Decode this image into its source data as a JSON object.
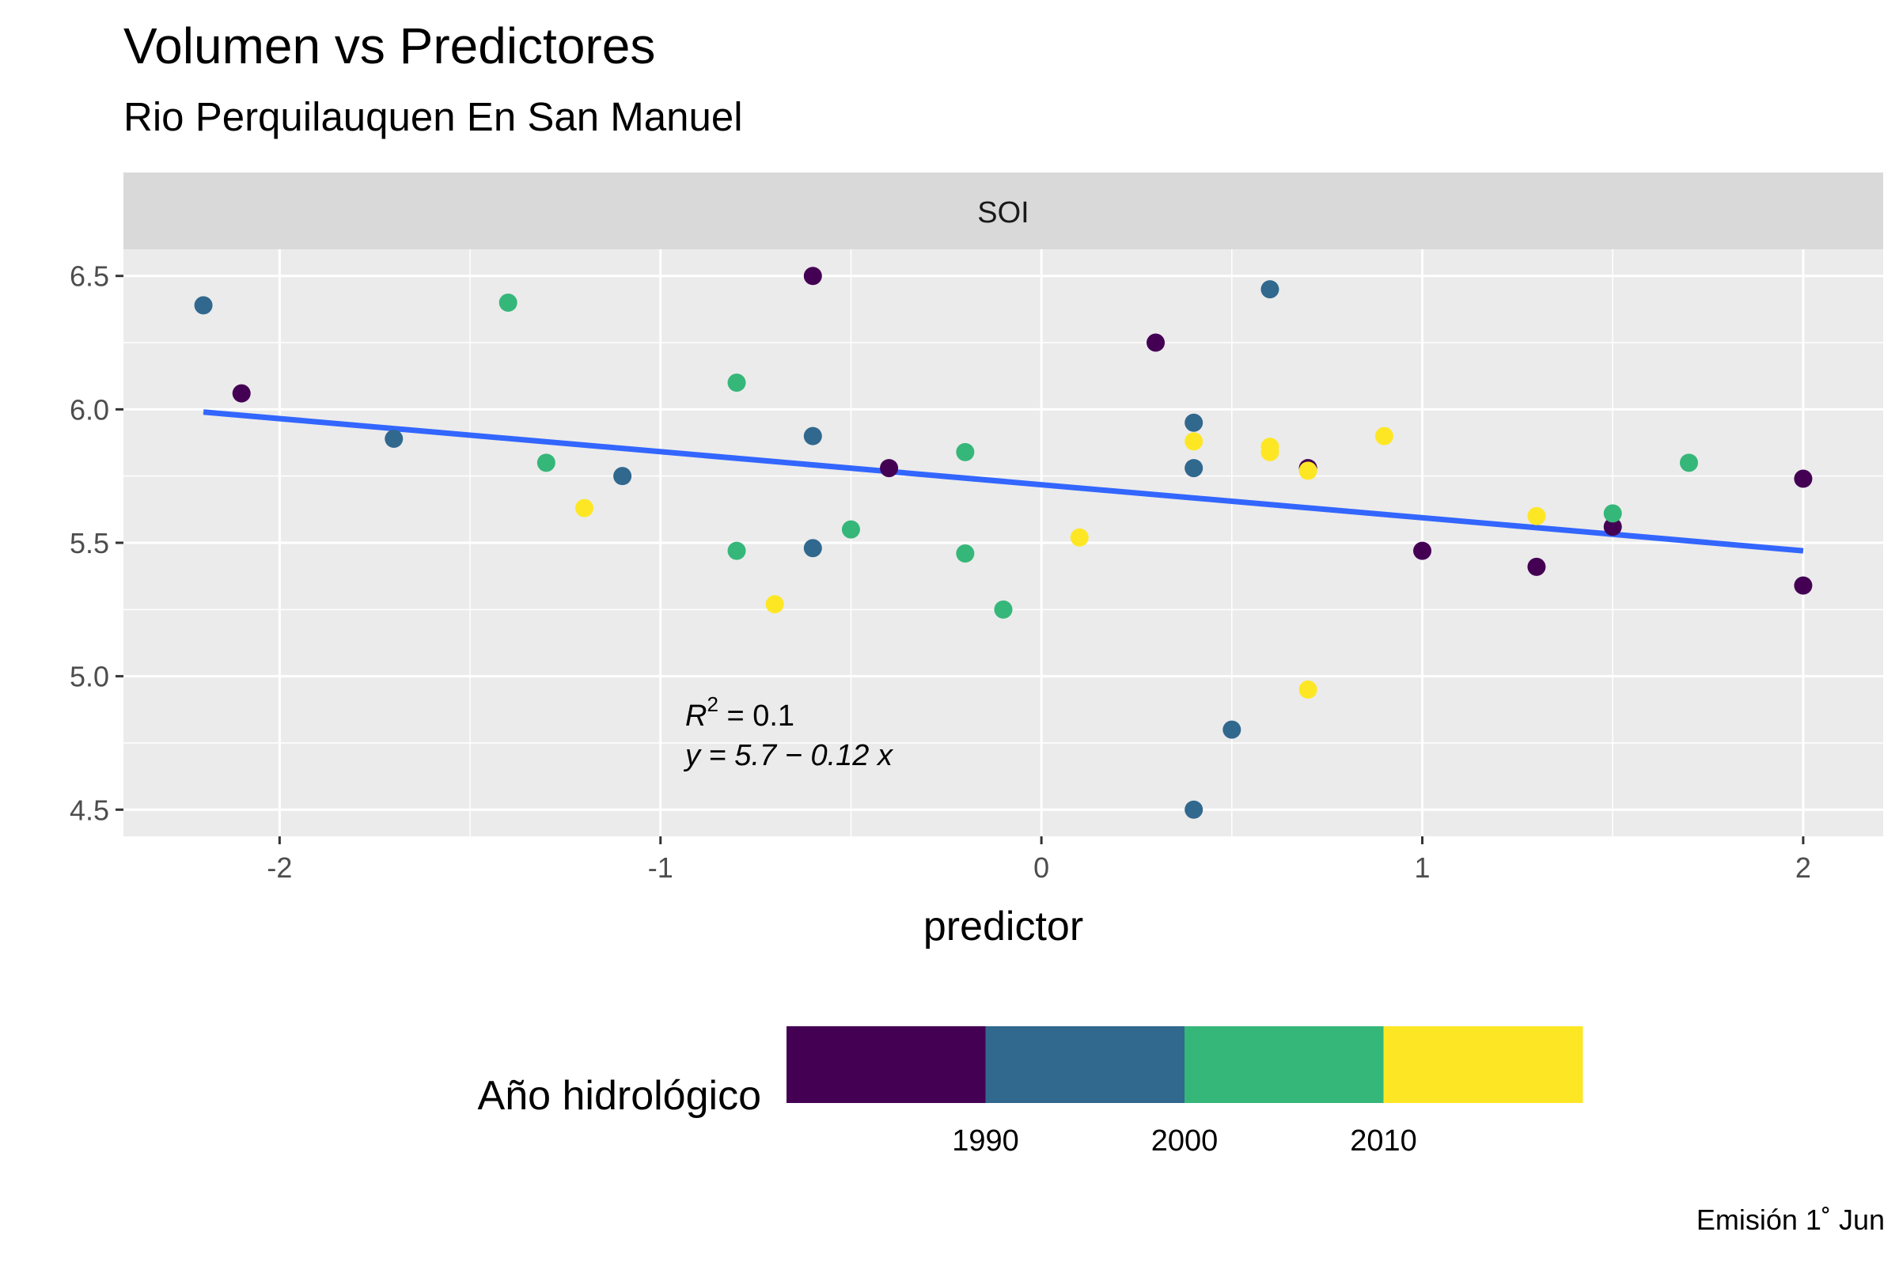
{
  "chart_data": {
    "type": "scatter",
    "title": "Volumen vs Predictores",
    "subtitle": "Rio Perquilauquen En San Manuel",
    "caption": "Emisión 1˚ Jun",
    "facet": "SOI",
    "xlabel": "predictor",
    "ylabel": "",
    "xlim": [
      -2.41,
      2.21
    ],
    "ylim": [
      4.4,
      6.6
    ],
    "x_ticks": [
      -2,
      -1,
      0,
      1,
      2
    ],
    "x_tick_labels": [
      "-2",
      "-1",
      "0",
      "1",
      "2"
    ],
    "y_ticks": [
      4.5,
      5.0,
      5.5,
      6.0,
      6.5
    ],
    "y_tick_labels": [
      "4.5",
      "5.0",
      "5.5",
      "6.0",
      "6.5"
    ],
    "grid": true,
    "legend": {
      "title": "Año hidrológico",
      "placement": "bottom",
      "colors": [
        "#440154",
        "#31688e",
        "#35b779",
        "#fde725"
      ],
      "labels": [
        "1990",
        "2000",
        "2010"
      ]
    },
    "points": [
      {
        "x": -2.2,
        "y": 6.39,
        "color": "#31688e"
      },
      {
        "x": -2.1,
        "y": 6.06,
        "color": "#440154"
      },
      {
        "x": -1.7,
        "y": 5.89,
        "color": "#31688e"
      },
      {
        "x": -1.4,
        "y": 6.4,
        "color": "#35b779"
      },
      {
        "x": -1.3,
        "y": 5.8,
        "color": "#35b779"
      },
      {
        "x": -1.2,
        "y": 5.63,
        "color": "#fde725"
      },
      {
        "x": -1.1,
        "y": 5.75,
        "color": "#31688e"
      },
      {
        "x": -0.8,
        "y": 6.1,
        "color": "#35b779"
      },
      {
        "x": -0.8,
        "y": 5.47,
        "color": "#35b779"
      },
      {
        "x": -0.7,
        "y": 5.27,
        "color": "#fde725"
      },
      {
        "x": -0.6,
        "y": 6.5,
        "color": "#440154"
      },
      {
        "x": -0.6,
        "y": 5.9,
        "color": "#31688e"
      },
      {
        "x": -0.6,
        "y": 5.48,
        "color": "#31688e"
      },
      {
        "x": -0.5,
        "y": 5.55,
        "color": "#35b779"
      },
      {
        "x": -0.4,
        "y": 5.78,
        "color": "#440154"
      },
      {
        "x": -0.2,
        "y": 5.84,
        "color": "#35b779"
      },
      {
        "x": -0.2,
        "y": 5.46,
        "color": "#35b779"
      },
      {
        "x": -0.1,
        "y": 5.25,
        "color": "#35b779"
      },
      {
        "x": 0.1,
        "y": 5.52,
        "color": "#fde725"
      },
      {
        "x": 0.3,
        "y": 6.25,
        "color": "#440154"
      },
      {
        "x": 0.4,
        "y": 5.95,
        "color": "#31688e"
      },
      {
        "x": 0.4,
        "y": 5.88,
        "color": "#fde725"
      },
      {
        "x": 0.4,
        "y": 5.78,
        "color": "#31688e"
      },
      {
        "x": 0.4,
        "y": 4.5,
        "color": "#31688e"
      },
      {
        "x": 0.5,
        "y": 4.8,
        "color": "#31688e"
      },
      {
        "x": 0.6,
        "y": 6.45,
        "color": "#31688e"
      },
      {
        "x": 0.6,
        "y": 5.86,
        "color": "#fde725"
      },
      {
        "x": 0.6,
        "y": 5.84,
        "color": "#fde725"
      },
      {
        "x": 0.7,
        "y": 5.78,
        "color": "#440154"
      },
      {
        "x": 0.7,
        "y": 5.77,
        "color": "#fde725"
      },
      {
        "x": 0.7,
        "y": 4.95,
        "color": "#fde725"
      },
      {
        "x": 0.9,
        "y": 5.9,
        "color": "#fde725"
      },
      {
        "x": 1.0,
        "y": 5.47,
        "color": "#440154"
      },
      {
        "x": 1.3,
        "y": 5.6,
        "color": "#fde725"
      },
      {
        "x": 1.3,
        "y": 5.41,
        "color": "#440154"
      },
      {
        "x": 1.5,
        "y": 5.56,
        "color": "#440154"
      },
      {
        "x": 1.5,
        "y": 5.61,
        "color": "#35b779"
      },
      {
        "x": 1.7,
        "y": 5.8,
        "color": "#35b779"
      },
      {
        "x": 2.0,
        "y": 5.74,
        "color": "#440154"
      },
      {
        "x": 2.0,
        "y": 5.34,
        "color": "#440154"
      }
    ],
    "fit_line": {
      "x": [
        -2.2,
        2.0
      ],
      "y": [
        5.99,
        5.47
      ],
      "color": "#3366ff"
    },
    "annotations": {
      "r2_value": "= 0.1",
      "equation": "y = 5.7 − 0.12 x"
    }
  }
}
